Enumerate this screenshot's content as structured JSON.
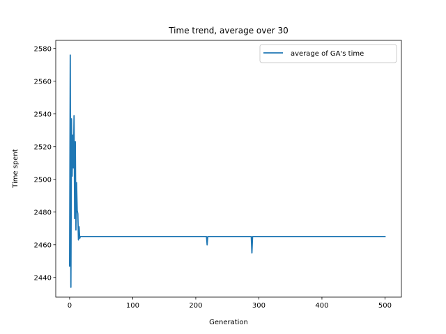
{
  "chart_data": {
    "type": "line",
    "title": "Time trend, average over 30",
    "xlabel": "Generation",
    "ylabel": "Time spent",
    "xlim": [
      -22,
      526
    ],
    "ylim": [
      2428,
      2585
    ],
    "xticks": [
      0,
      100,
      200,
      300,
      400,
      500
    ],
    "xtick_labels": [
      "0",
      "100",
      "200",
      "300",
      "400",
      "500"
    ],
    "yticks": [
      2440,
      2460,
      2480,
      2500,
      2520,
      2540,
      2560,
      2580
    ],
    "ytick_labels": [
      "2440",
      "2460",
      "2480",
      "2500",
      "2520",
      "2540",
      "2560",
      "2580"
    ],
    "grid": false,
    "legend_position": "top-right",
    "series": [
      {
        "name": "average of GA's time",
        "color": "#1f77b4",
        "x": [
          0,
          1,
          2,
          3,
          4,
          5,
          6,
          7,
          8,
          9,
          10,
          11,
          12,
          13,
          14,
          15,
          16,
          17,
          18,
          19,
          20,
          21,
          22,
          23,
          24,
          25,
          30,
          50,
          100,
          150,
          200,
          217,
          218,
          219,
          220,
          250,
          288,
          289,
          290,
          291,
          300,
          350,
          400,
          450,
          500
        ],
        "y": [
          2447,
          2576,
          2434,
          2537,
          2502,
          2527,
          2507,
          2539,
          2476,
          2523,
          2469,
          2498,
          2481,
          2479,
          2463,
          2471,
          2464,
          2465,
          2465,
          2465,
          2465,
          2465,
          2465,
          2465,
          2465,
          2465,
          2465,
          2465,
          2465,
          2465,
          2465,
          2465,
          2460,
          2465,
          2465,
          2465,
          2465,
          2455,
          2465,
          2465,
          2465,
          2465,
          2465,
          2465,
          2465
        ]
      }
    ]
  }
}
